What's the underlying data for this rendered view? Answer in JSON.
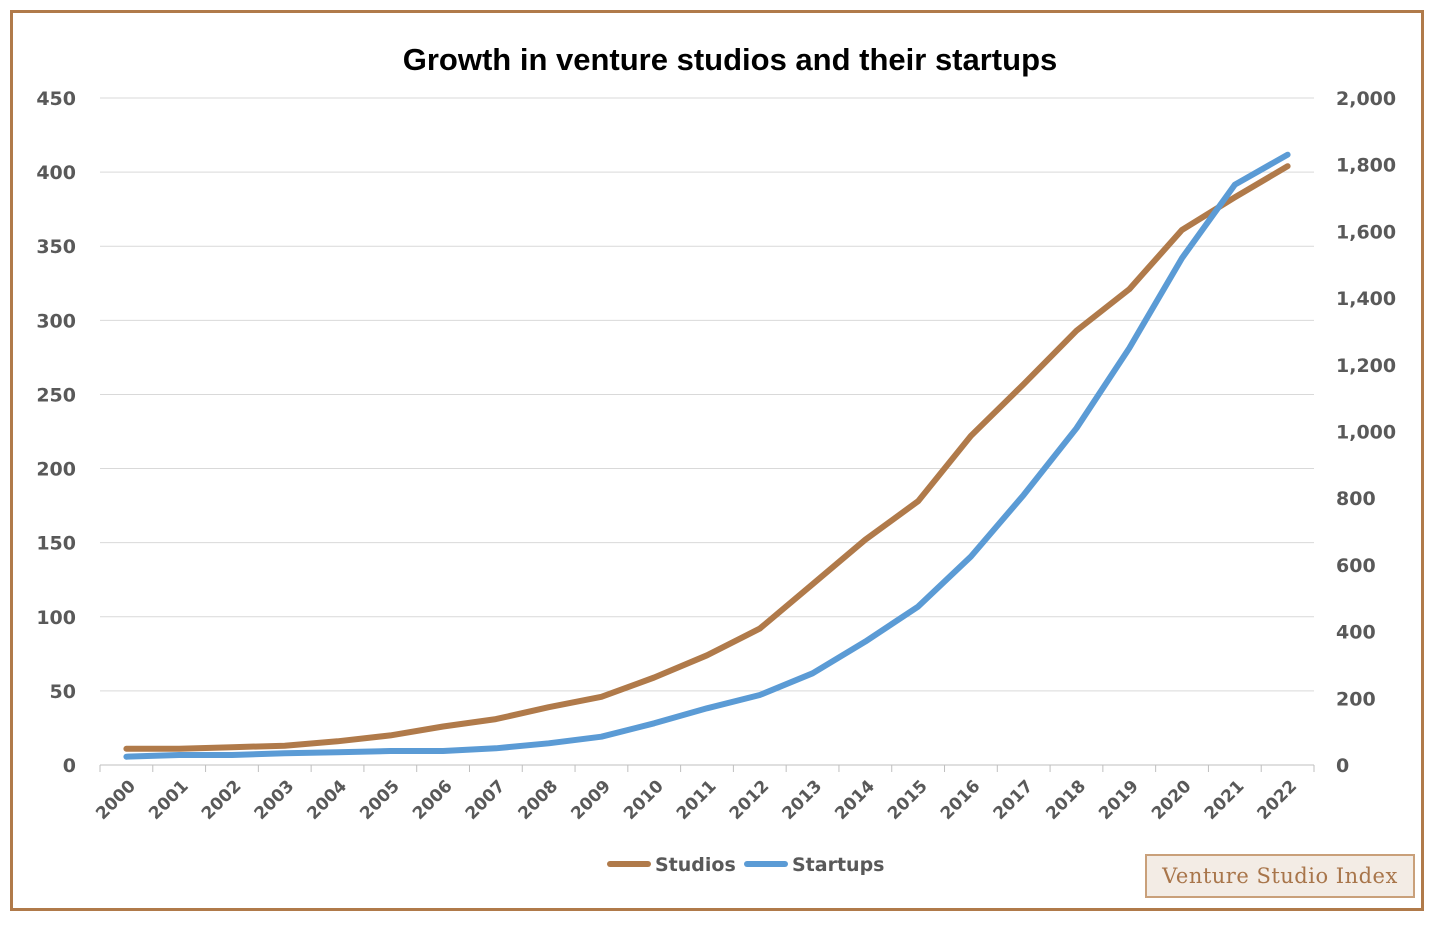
{
  "chart_data": {
    "type": "line",
    "title": "Growth in venture studios and their startups",
    "x": [
      "2000",
      "2001",
      "2002",
      "2003",
      "2004",
      "2005",
      "2006",
      "2007",
      "2008",
      "2009",
      "2010",
      "2011",
      "2012",
      "2013",
      "2014",
      "2015",
      "2016",
      "2017",
      "2018",
      "2019",
      "2020",
      "2021",
      "2022"
    ],
    "y_left": {
      "min": 0,
      "max": 450,
      "ticks": [
        "0",
        "50",
        "100",
        "150",
        "200",
        "250",
        "300",
        "350",
        "400",
        "450"
      ]
    },
    "y_right": {
      "min": 0,
      "max": 2000,
      "ticks": [
        "0",
        "200",
        "400",
        "600",
        "800",
        "1,000",
        "1,200",
        "1,400",
        "1,600",
        "1,800",
        "2,000"
      ]
    },
    "series": [
      {
        "name": "Studios",
        "axis": "left",
        "color": "#b07a4a",
        "values": [
          11,
          11,
          12,
          13,
          16,
          20,
          26,
          31,
          39,
          46,
          59,
          74,
          92,
          122,
          152,
          178,
          222,
          257,
          293,
          321,
          361,
          383,
          404
        ]
      },
      {
        "name": "Startups",
        "axis": "right",
        "color": "#5b9bd5",
        "values": [
          25,
          30,
          30,
          35,
          38,
          42,
          42,
          50,
          65,
          85,
          125,
          170,
          210,
          275,
          370,
          475,
          625,
          810,
          1010,
          1250,
          1520,
          1740,
          1830
        ]
      }
    ],
    "grid": true,
    "legend": "bottom"
  },
  "watermark": "Venture Studio Index"
}
